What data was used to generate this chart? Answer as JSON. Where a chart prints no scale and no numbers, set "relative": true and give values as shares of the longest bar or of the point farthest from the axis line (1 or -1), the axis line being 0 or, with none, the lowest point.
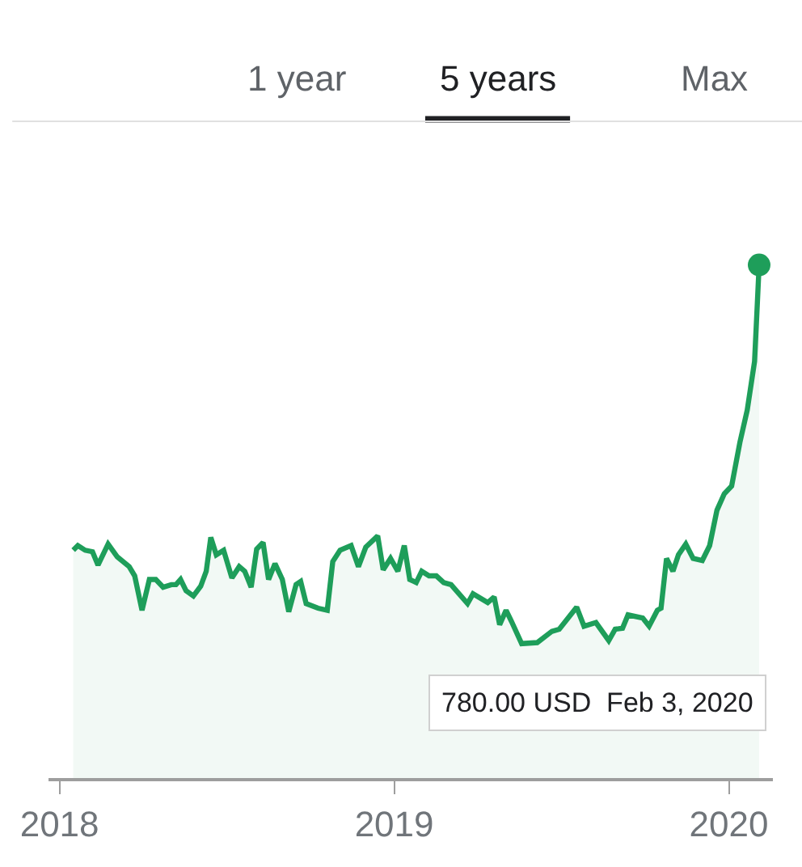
{
  "chart_data": {
    "type": "area",
    "x": [
      "2018-01-16",
      "2018-01-21",
      "2018-01-29",
      "2018-02-06",
      "2018-02-12",
      "2018-02-23",
      "2018-03-05",
      "2018-03-18",
      "2018-03-24",
      "2018-04-01",
      "2018-04-09",
      "2018-04-16",
      "2018-04-24",
      "2018-05-03",
      "2018-05-08",
      "2018-05-13",
      "2018-05-19",
      "2018-05-27",
      "2018-06-04",
      "2018-06-10",
      "2018-06-15",
      "2018-06-21",
      "2018-06-29",
      "2018-07-08",
      "2018-07-16",
      "2018-07-22",
      "2018-07-29",
      "2018-08-04",
      "2018-08-11",
      "2018-08-17",
      "2018-08-24",
      "2018-09-01",
      "2018-09-08",
      "2018-09-16",
      "2018-09-21",
      "2018-09-27",
      "2018-10-10",
      "2018-10-20",
      "2018-10-26",
      "2018-11-03",
      "2018-11-15",
      "2018-11-23",
      "2018-12-01",
      "2018-12-14",
      "2018-12-20",
      "2018-12-28",
      "2019-01-05",
      "2019-01-12",
      "2019-01-18",
      "2019-01-25",
      "2019-01-31",
      "2019-02-08",
      "2019-02-16",
      "2019-02-24",
      "2019-03-04",
      "2019-03-22",
      "2019-03-28",
      "2019-04-13",
      "2019-04-20",
      "2019-04-26",
      "2019-05-03",
      "2019-05-09",
      "2019-05-20",
      "2019-06-06",
      "2019-06-22",
      "2019-06-30",
      "2019-07-19",
      "2019-07-27",
      "2019-08-09",
      "2019-08-23",
      "2019-08-30",
      "2019-09-07",
      "2019-09-13",
      "2019-09-29",
      "2019-10-06",
      "2019-10-15",
      "2019-10-19",
      "2019-10-25",
      "2019-11-01",
      "2019-11-07",
      "2019-11-15",
      "2019-11-23",
      "2019-12-03",
      "2019-12-11",
      "2019-12-19",
      "2019-12-27",
      "2020-01-04",
      "2020-01-13",
      "2020-01-21",
      "2020-01-29",
      "2020-02-01",
      "2020-02-03"
    ],
    "series": [
      {
        "color": "#1e9e5a",
        "values": [
          0.444,
          0.453,
          0.444,
          0.441,
          0.415,
          0.456,
          0.431,
          0.412,
          0.394,
          0.327,
          0.387,
          0.387,
          0.372,
          0.377,
          0.377,
          0.387,
          0.365,
          0.355,
          0.374,
          0.403,
          0.469,
          0.435,
          0.444,
          0.39,
          0.412,
          0.403,
          0.372,
          0.446,
          0.459,
          0.387,
          0.418,
          0.387,
          0.324,
          0.377,
          0.383,
          0.34,
          0.331,
          0.327,
          0.422,
          0.444,
          0.453,
          0.412,
          0.45,
          0.472,
          0.406,
          0.428,
          0.403,
          0.453,
          0.387,
          0.381,
          0.403,
          0.394,
          0.394,
          0.381,
          0.377,
          0.34,
          0.359,
          0.342,
          0.353,
          0.299,
          0.327,
          0.305,
          0.262,
          0.264,
          0.286,
          0.29,
          0.333,
          0.296,
          0.303,
          0.268,
          0.29,
          0.292,
          0.318,
          0.312,
          0.296,
          0.327,
          0.331,
          0.428,
          0.403,
          0.435,
          0.456,
          0.428,
          0.424,
          0.453,
          0.522,
          0.554,
          0.569,
          0.654,
          0.717,
          0.812,
          0.924,
          1
        ]
      }
    ],
    "relative": true,
    "xlim": [
      "2017-12-20",
      "2020-02-18"
    ],
    "xticks": [
      {
        "value": "2018-01-01",
        "label": "2018"
      },
      {
        "value": "2019-01-01",
        "label": "2019"
      },
      {
        "value": "2020-01-01",
        "label": "2020"
      }
    ],
    "line_style": "solid",
    "annotations": [
      "1 year",
      "5 years",
      "Max",
      "780.00 USD  Feb 3, 2020"
    ]
  }
}
